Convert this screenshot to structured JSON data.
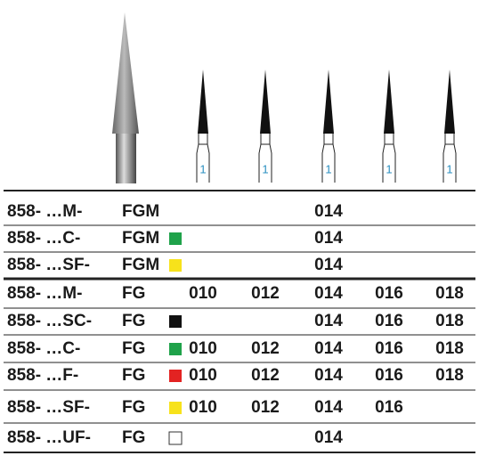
{
  "header": {
    "shank_labels": [
      "1",
      "1",
      "1",
      "1",
      "1"
    ]
  },
  "table": {
    "rows": [
      {
        "code": "858- …M-",
        "type": "FGM",
        "swatch": null,
        "sizes": [
          null,
          null,
          "014",
          null,
          null
        ]
      },
      {
        "code": "858- …C-",
        "type": "FGM",
        "swatch": "#1fa24a",
        "sizes": [
          null,
          null,
          "014",
          null,
          null
        ]
      },
      {
        "code": "858- …SF-",
        "type": "FGM",
        "swatch": "#f7e21b",
        "sizes": [
          null,
          null,
          "014",
          null,
          null
        ]
      },
      {
        "code": "858- …M-",
        "type": "FG",
        "swatch": null,
        "sizes": [
          "010",
          "012",
          "014",
          "016",
          "018"
        ]
      },
      {
        "code": "858- …SC-",
        "type": "FG",
        "swatch": "#111111",
        "sizes": [
          null,
          null,
          "014",
          "016",
          "018"
        ]
      },
      {
        "code": "858- …C-",
        "type": "FG",
        "swatch": "#1fa24a",
        "sizes": [
          "010",
          "012",
          "014",
          "016",
          "018"
        ]
      },
      {
        "code": "858- …F-",
        "type": "FG",
        "swatch": "#e32322",
        "sizes": [
          "010",
          "012",
          "014",
          "016",
          "018"
        ]
      },
      {
        "code": "858- …SF-",
        "type": "FG",
        "swatch": "#f7e21b",
        "sizes": [
          "010",
          "012",
          "014",
          "016",
          null
        ]
      },
      {
        "code": "858- …UF-",
        "type": "FG",
        "swatch": "#ffffff",
        "sizes": [
          null,
          null,
          "014",
          null,
          null
        ]
      }
    ]
  }
}
